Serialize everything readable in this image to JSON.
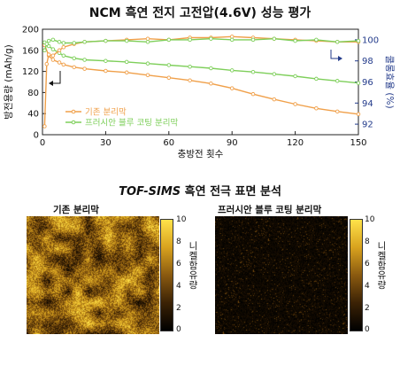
{
  "titles": {
    "top": "NCM 흑연 전지 고전압(4.6V) 성능 평가",
    "bottom_prefix": "TOF-SIMS",
    "bottom_rest": " 흑연 전극 표면 분석"
  },
  "chart_data": {
    "type": "line",
    "title": "NCM 흑연 전지 고전압(4.6V) 성능 평가",
    "xlabel": "충방전 횟수",
    "ylabel": "방전용량 (mAh/g)",
    "y2label": "쿨롱효율 (%)",
    "xlim": [
      0,
      150
    ],
    "ylim": [
      0,
      200
    ],
    "y2lim": [
      91,
      101
    ],
    "xticks": [
      0,
      30,
      60,
      90,
      120,
      150
    ],
    "yticks": [
      0,
      40,
      80,
      120,
      160,
      200
    ],
    "y2ticks": [
      92,
      94,
      96,
      98,
      100
    ],
    "legend_position": "bottom-left",
    "series": [
      {
        "name": "기존 분리막",
        "axis": "left",
        "color": "#f0a04a",
        "x": [
          1,
          3,
          5,
          8,
          10,
          15,
          20,
          30,
          40,
          50,
          60,
          70,
          80,
          90,
          100,
          110,
          120,
          130,
          140,
          150
        ],
        "values": [
          170,
          150,
          142,
          137,
          133,
          128,
          125,
          121,
          118,
          113,
          108,
          103,
          97,
          88,
          77,
          67,
          58,
          50,
          44,
          39
        ]
      },
      {
        "name": "프러시안 블루 코팅 분리막",
        "axis": "left",
        "color": "#7ecf5a",
        "x": [
          1,
          3,
          5,
          8,
          10,
          15,
          20,
          30,
          40,
          50,
          60,
          70,
          80,
          90,
          100,
          110,
          120,
          130,
          140,
          150
        ],
        "values": [
          175,
          168,
          162,
          155,
          150,
          145,
          142,
          140,
          138,
          135,
          132,
          129,
          126,
          122,
          119,
          115,
          111,
          106,
          102,
          98
        ]
      },
      {
        "name": "기존 분리막 쿨롱효율",
        "axis": "right",
        "color": "#f0a04a",
        "x": [
          1,
          2,
          3,
          5,
          8,
          10,
          15,
          20,
          30,
          40,
          50,
          60,
          70,
          80,
          90,
          100,
          110,
          120,
          130,
          140,
          150
        ],
        "values": [
          91.8,
          97.7,
          98.6,
          98.5,
          99.0,
          99.3,
          99.6,
          99.8,
          99.9,
          100.0,
          100.1,
          100.0,
          100.2,
          100.2,
          100.3,
          100.2,
          100.1,
          100.0,
          99.9,
          99.8,
          99.8
        ]
      },
      {
        "name": "프러시안 블루 코팅 분리막 쿨롱효율",
        "axis": "right",
        "color": "#7ecf5a",
        "x": [
          1,
          2,
          3,
          5,
          8,
          10,
          15,
          20,
          30,
          40,
          50,
          60,
          70,
          80,
          90,
          100,
          110,
          120,
          130,
          140,
          150
        ],
        "values": [
          99.0,
          99.6,
          99.9,
          100.0,
          99.8,
          99.7,
          99.7,
          99.8,
          99.9,
          99.9,
          99.8,
          100.0,
          100.0,
          100.1,
          100.0,
          100.0,
          100.1,
          99.9,
          100.0,
          99.8,
          99.9
        ]
      }
    ]
  },
  "images": {
    "left_label": "기존 분리막",
    "right_label": "프러시안 블루 코팅 분리막",
    "colorbar_ticks": [
      "10",
      "8",
      "6",
      "4",
      "2",
      "0"
    ],
    "colorbar_label": "니켈함유량",
    "left_intensity": "high",
    "right_intensity": "low"
  }
}
